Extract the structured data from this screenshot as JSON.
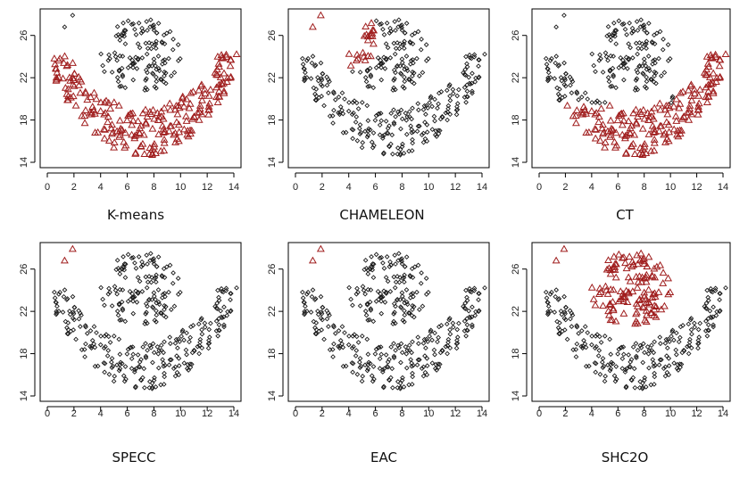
{
  "colors": {
    "cluster_a": "#1a1a1a",
    "cluster_b": "#a01e1e",
    "frame": "#000000"
  },
  "chart_data": [
    {
      "type": "scatter",
      "title": "K-means",
      "xlim": [
        0,
        14
      ],
      "ylim": [
        14,
        28
      ],
      "x_ticks": [
        0,
        2,
        4,
        6,
        8,
        10,
        12,
        14
      ],
      "y_ticks": [
        14,
        18,
        22,
        26
      ],
      "highlight": "lower-arc",
      "legend": "none"
    },
    {
      "type": "scatter",
      "title": "CHAMELEON",
      "xlim": [
        0,
        14
      ],
      "ylim": [
        14,
        28
      ],
      "x_ticks": [
        0,
        2,
        4,
        6,
        8,
        10,
        12,
        14
      ],
      "y_ticks": [
        14,
        18,
        22,
        26
      ],
      "highlight": "outliers-and-blob-left",
      "legend": "none"
    },
    {
      "type": "scatter",
      "title": "CT",
      "xlim": [
        0,
        14
      ],
      "ylim": [
        14,
        28
      ],
      "x_ticks": [
        0,
        2,
        4,
        6,
        8,
        10,
        12,
        14
      ],
      "y_ticks": [
        14,
        18,
        22,
        26
      ],
      "highlight": "lower-arc-right-arm",
      "legend": "none"
    },
    {
      "type": "scatter",
      "title": "SPECC",
      "xlim": [
        0,
        14
      ],
      "ylim": [
        14,
        28
      ],
      "x_ticks": [
        0,
        2,
        4,
        6,
        8,
        10,
        12,
        14
      ],
      "y_ticks": [
        14,
        18,
        22,
        26
      ],
      "highlight": "outliers",
      "legend": "none"
    },
    {
      "type": "scatter",
      "title": "EAC",
      "xlim": [
        0,
        14
      ],
      "ylim": [
        14,
        28
      ],
      "x_ticks": [
        0,
        2,
        4,
        6,
        8,
        10,
        12,
        14
      ],
      "y_ticks": [
        14,
        18,
        22,
        26
      ],
      "highlight": "outliers",
      "legend": "none"
    },
    {
      "type": "scatter",
      "title": "SHC2O",
      "xlim": [
        0,
        14
      ],
      "ylim": [
        14,
        28
      ],
      "x_ticks": [
        0,
        2,
        4,
        6,
        8,
        10,
        12,
        14
      ],
      "y_ticks": [
        14,
        18,
        22,
        26
      ],
      "highlight": "outliers-and-blob",
      "legend": "none"
    }
  ]
}
